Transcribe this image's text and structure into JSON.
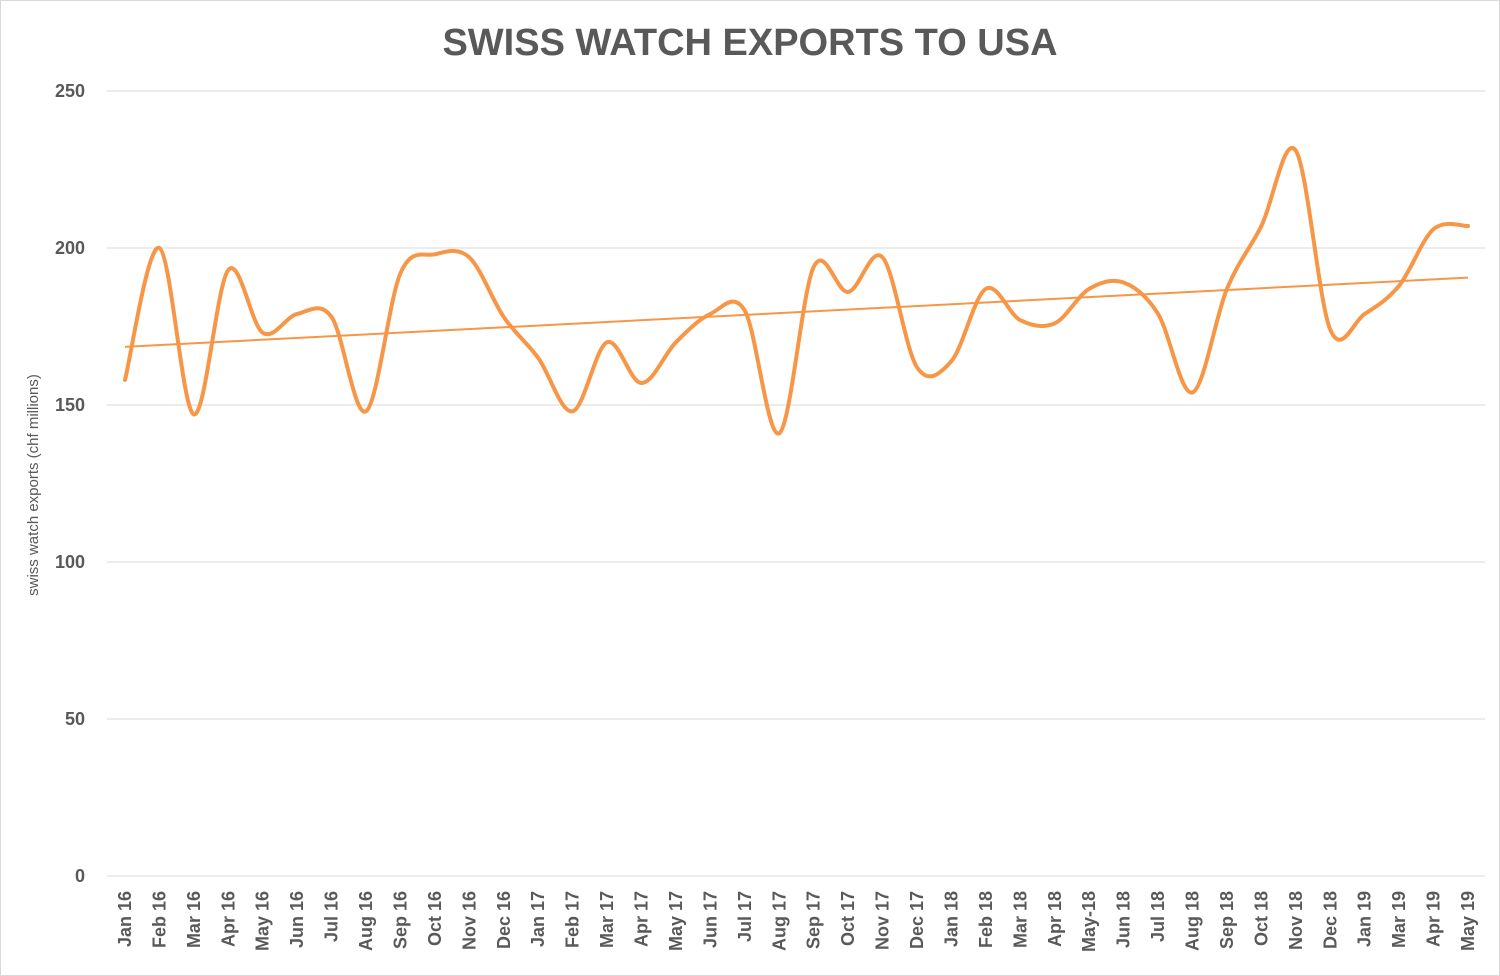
{
  "chart_data": {
    "type": "line",
    "title": "SWISS WATCH EXPORTS TO USA",
    "xlabel": "",
    "ylabel": "swiss watch exports (chf  millions)",
    "ylim": [
      0,
      250
    ],
    "yticks": [
      0,
      50,
      100,
      150,
      200,
      250
    ],
    "grid": true,
    "legend": "none",
    "categories": [
      "Jan 16",
      "Feb 16",
      "Mar 16",
      "Apr 16",
      "May 16",
      "Jun 16",
      "Jul 16",
      "Aug 16",
      "Sep 16",
      "Oct 16",
      "Nov 16",
      "Dec 16",
      "Jan 17",
      "Feb 17",
      "Mar 17",
      "Apr 17",
      "May 17",
      "Jun 17",
      "Jul 17",
      "Aug 17",
      "Sep 17",
      "Oct 17",
      "Nov 17",
      "Dec 17",
      "Jan 18",
      "Feb 18",
      "Mar 18",
      "Apr 18",
      "May-18",
      "Jun 18",
      "Jul 18",
      "Aug 18",
      "Sep 18",
      "Oct 18",
      "Nov 18",
      "Dec 18",
      "Jan 19",
      "Mar 19",
      "Apr 19",
      "May 19"
    ],
    "series": [
      {
        "values": [
          158,
          200,
          147,
          193,
          173,
          179,
          178,
          148,
          192,
          198,
          197,
          178,
          165,
          148,
          170,
          157,
          170,
          179,
          180,
          141,
          194,
          186,
          197,
          162,
          164,
          187,
          177,
          176,
          187,
          189,
          179,
          154,
          187,
          207,
          231,
          174,
          179,
          188,
          206,
          207
        ],
        "color": "#f79646"
      }
    ],
    "trendline": {
      "type": "linear",
      "color": "#f79646"
    }
  }
}
